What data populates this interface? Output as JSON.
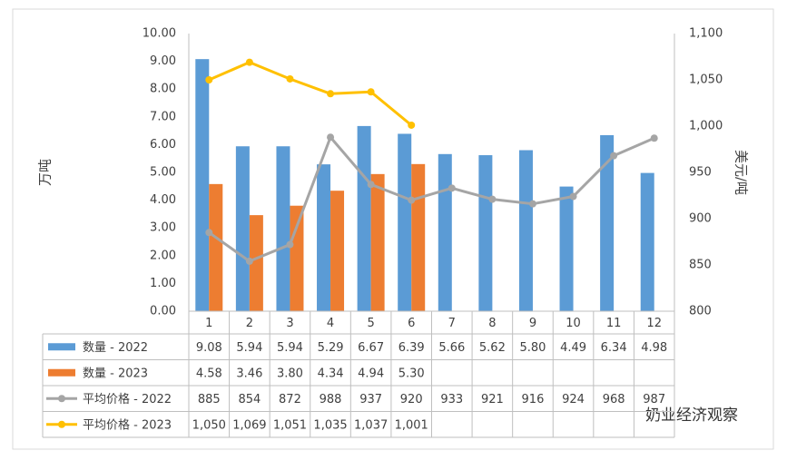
{
  "chart_data": {
    "type": "bar_line_table",
    "y_label": "万吨",
    "y2_label": "美元/吨",
    "watermark": "奶业经济观察",
    "categories": [
      "1",
      "2",
      "3",
      "4",
      "5",
      "6",
      "7",
      "8",
      "9",
      "10",
      "11",
      "12"
    ],
    "ylim": [
      0,
      10
    ],
    "y2lim": [
      800,
      1100
    ],
    "yticks": [
      {
        "value": 0,
        "label": "0.00"
      },
      {
        "value": 1,
        "label": "1.00"
      },
      {
        "value": 2,
        "label": "2.00"
      },
      {
        "value": 3,
        "label": "3.00"
      },
      {
        "value": 4,
        "label": "4.00"
      },
      {
        "value": 5,
        "label": "5.00"
      },
      {
        "value": 6,
        "label": "6.00"
      },
      {
        "value": 7,
        "label": "7.00"
      },
      {
        "value": 8,
        "label": "8.00"
      },
      {
        "value": 9,
        "label": "9.00"
      },
      {
        "value": 10,
        "label": "10.00"
      }
    ],
    "y2ticks": [
      800,
      850,
      900,
      950,
      {
        "value": 1000,
        "label": "1,000"
      },
      {
        "value": 1050,
        "label": "1,050"
      },
      {
        "value": 1100,
        "label": "1,100"
      }
    ],
    "grid": false,
    "series": [
      {
        "name": "数量 - 2022",
        "kind": "bar",
        "color": "#5b9bd5",
        "values": [
          9.08,
          5.94,
          5.94,
          5.29,
          6.67,
          6.39,
          5.66,
          5.62,
          5.8,
          4.49,
          6.34,
          4.98
        ],
        "value_labels": [
          "9.08",
          "5.94",
          "5.94",
          "5.29",
          "6.67",
          "6.39",
          "5.66",
          "5.62",
          "5.80",
          "4.49",
          "6.34",
          "4.98"
        ]
      },
      {
        "name": "数量 - 2023",
        "kind": "bar",
        "color": "#ed7d31",
        "values": [
          4.58,
          3.46,
          3.8,
          4.34,
          4.94,
          5.3,
          null,
          null,
          null,
          null,
          null,
          null
        ],
        "value_labels": [
          "4.58",
          "3.46",
          "3.80",
          "4.34",
          "4.94",
          "5.30",
          null,
          null,
          null,
          null,
          null,
          null
        ]
      },
      {
        "name": "平均价格 - 2022",
        "kind": "line",
        "axis": "y2",
        "color": "#a5a5a5",
        "values": [
          885,
          854,
          872,
          988,
          937,
          920,
          933,
          921,
          916,
          924,
          968,
          987
        ]
      },
      {
        "name": "平均价格 - 2023",
        "kind": "line",
        "axis": "y2",
        "color": "#ffc000",
        "values": [
          1050,
          1069,
          1051,
          1035,
          1037,
          1001,
          null,
          null,
          null,
          null,
          null,
          null
        ],
        "value_labels": [
          "1,050",
          "1,069",
          "1,051",
          "1,035",
          "1,037",
          "1,001",
          null,
          null,
          null,
          null,
          null,
          null
        ]
      }
    ]
  }
}
